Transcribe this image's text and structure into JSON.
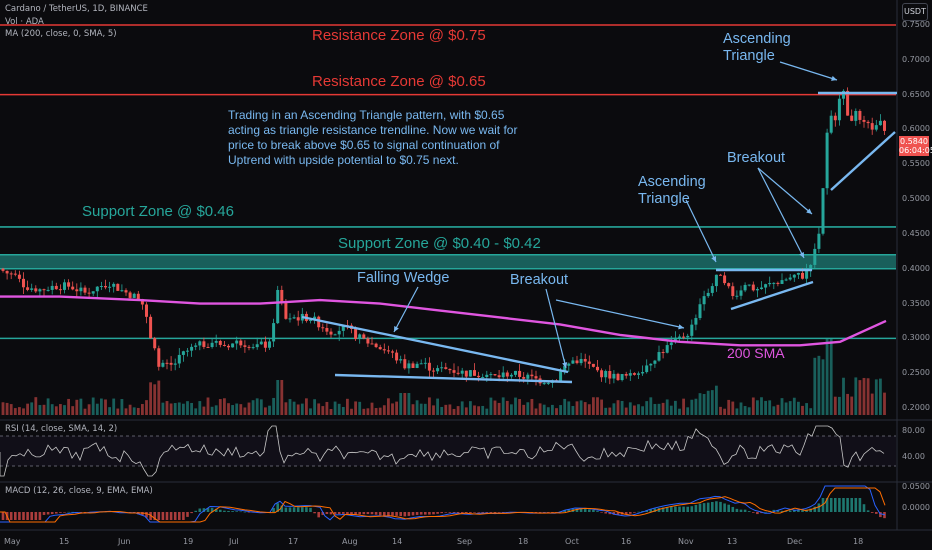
{
  "header": {
    "symbol": "Cardano / TetherUS, 1D, BINANCE",
    "volume": "Vol · ADA",
    "ma": "MA (200, close, 0, SMA, 5)",
    "currency_button": "USDT"
  },
  "price_tag": {
    "price": "0.5840",
    "countdown": "06:04:05"
  },
  "rsi_label": "RSI (14, close, SMA, 14, 2)",
  "macd_label": "MACD (12, 26, close, 9, EMA, EMA)",
  "annotations": {
    "resistance_075": "Resistance Zone @ $0.75",
    "resistance_065": "Resistance Zone @ $0.65",
    "support_046": "Support Zone @ $0.46",
    "support_040_042": "Support Zone @ $0.40 - $0.42",
    "note": "Trading in an Ascending Triangle pattern, with $0.65 acting as triangle resistance trendline. Now we wait for price to break above $0.65 to signal continuation of Uptrend with upside potential to $0.75 next.",
    "ascending_triangle_top_1": "Ascending",
    "ascending_triangle_top_2": "Triangle",
    "breakout_top": "Breakout",
    "ascending_triangle_mid_1": "Ascending",
    "ascending_triangle_mid_2": "Triangle",
    "falling_wedge": "Falling Wedge",
    "breakout_low": "Breakout",
    "sma_label": "200 SMA"
  },
  "colors": {
    "resistance": "#e53935",
    "support": "#26a69a",
    "pattern": "#79b8f0",
    "sma": "#e056e0",
    "up": "#26a69a",
    "down": "#ef5350"
  },
  "chart_data": {
    "type": "candlestick",
    "title": "Cardano / TetherUS, 1D, BINANCE",
    "price_axis": {
      "ticks": [
        "0.7500",
        "0.7000",
        "0.6500",
        "0.6000",
        "0.5500",
        "0.5000",
        "0.4500",
        "0.4000",
        "0.3500",
        "0.3000",
        "0.2500",
        "0.2000"
      ],
      "range": [
        0.19,
        0.77
      ]
    },
    "time_axis": {
      "ticks": [
        "May",
        "15",
        "Jun",
        "19",
        "Jul",
        "17",
        "Aug",
        "14",
        "Sep",
        "18",
        "Oct",
        "16",
        "Nov",
        "13",
        "Dec",
        "18"
      ]
    },
    "horizontal_levels": [
      {
        "name": "Resistance Zone @ $0.75",
        "value": 0.75
      },
      {
        "name": "Resistance Zone @ $0.65",
        "value": 0.65
      },
      {
        "name": "Support Zone @ $0.46",
        "value": 0.46
      },
      {
        "name": "Support Zone @ $0.40 - $0.42",
        "range": [
          0.4,
          0.42
        ]
      },
      {
        "name": "Support",
        "value": 0.3
      }
    ],
    "price_path": [
      [
        0,
        0.4
      ],
      [
        5,
        0.395
      ],
      [
        15,
        0.39
      ],
      [
        25,
        0.375
      ],
      [
        40,
        0.37
      ],
      [
        55,
        0.375
      ],
      [
        70,
        0.375
      ],
      [
        85,
        0.365
      ],
      [
        100,
        0.375
      ],
      [
        110,
        0.38
      ],
      [
        120,
        0.37
      ],
      [
        135,
        0.36
      ],
      [
        145,
        0.345
      ],
      [
        150,
        0.3
      ],
      [
        160,
        0.26
      ],
      [
        172,
        0.26
      ],
      [
        185,
        0.28
      ],
      [
        200,
        0.29
      ],
      [
        212,
        0.295
      ],
      [
        225,
        0.29
      ],
      [
        240,
        0.295
      ],
      [
        255,
        0.29
      ],
      [
        270,
        0.29
      ],
      [
        278,
        0.37
      ],
      [
        285,
        0.33
      ],
      [
        295,
        0.33
      ],
      [
        310,
        0.33
      ],
      [
        330,
        0.31
      ],
      [
        345,
        0.315
      ],
      [
        360,
        0.3
      ],
      [
        375,
        0.29
      ],
      [
        390,
        0.28
      ],
      [
        405,
        0.26
      ],
      [
        420,
        0.265
      ],
      [
        435,
        0.255
      ],
      [
        450,
        0.255
      ],
      [
        465,
        0.25
      ],
      [
        480,
        0.25
      ],
      [
        495,
        0.245
      ],
      [
        510,
        0.25
      ],
      [
        525,
        0.245
      ],
      [
        540,
        0.24
      ],
      [
        555,
        0.24
      ],
      [
        565,
        0.26
      ],
      [
        575,
        0.27
      ],
      [
        585,
        0.265
      ],
      [
        600,
        0.25
      ],
      [
        615,
        0.245
      ],
      [
        630,
        0.245
      ],
      [
        645,
        0.26
      ],
      [
        660,
        0.28
      ],
      [
        675,
        0.295
      ],
      [
        690,
        0.31
      ],
      [
        700,
        0.35
      ],
      [
        710,
        0.37
      ],
      [
        718,
        0.39
      ],
      [
        725,
        0.375
      ],
      [
        735,
        0.36
      ],
      [
        745,
        0.38
      ],
      [
        755,
        0.37
      ],
      [
        765,
        0.375
      ],
      [
        775,
        0.38
      ],
      [
        785,
        0.385
      ],
      [
        795,
        0.39
      ],
      [
        805,
        0.39
      ],
      [
        812,
        0.41
      ],
      [
        818,
        0.44
      ],
      [
        822,
        0.5
      ],
      [
        826,
        0.58
      ],
      [
        830,
        0.62
      ],
      [
        834,
        0.605
      ],
      [
        838,
        0.63
      ],
      [
        842,
        0.665
      ],
      [
        846,
        0.635
      ],
      [
        850,
        0.61
      ],
      [
        856,
        0.625
      ],
      [
        862,
        0.6
      ],
      [
        868,
        0.615
      ],
      [
        874,
        0.6
      ],
      [
        880,
        0.61
      ],
      [
        886,
        0.59
      ]
    ],
    "sma_200": [
      [
        0,
        0.36
      ],
      [
        60,
        0.36
      ],
      [
        140,
        0.355
      ],
      [
        200,
        0.35
      ],
      [
        260,
        0.35
      ],
      [
        320,
        0.355
      ],
      [
        380,
        0.35
      ],
      [
        440,
        0.34
      ],
      [
        500,
        0.33
      ],
      [
        560,
        0.32
      ],
      [
        620,
        0.305
      ],
      [
        680,
        0.295
      ],
      [
        740,
        0.29
      ],
      [
        800,
        0.29
      ],
      [
        840,
        0.295
      ],
      [
        886,
        0.325
      ]
    ],
    "rsi": {
      "ticks": [
        "80.00",
        "40.00"
      ],
      "band": [
        30,
        70
      ]
    },
    "macd": {
      "ticks": [
        "0.0500",
        "0.0000"
      ]
    }
  }
}
